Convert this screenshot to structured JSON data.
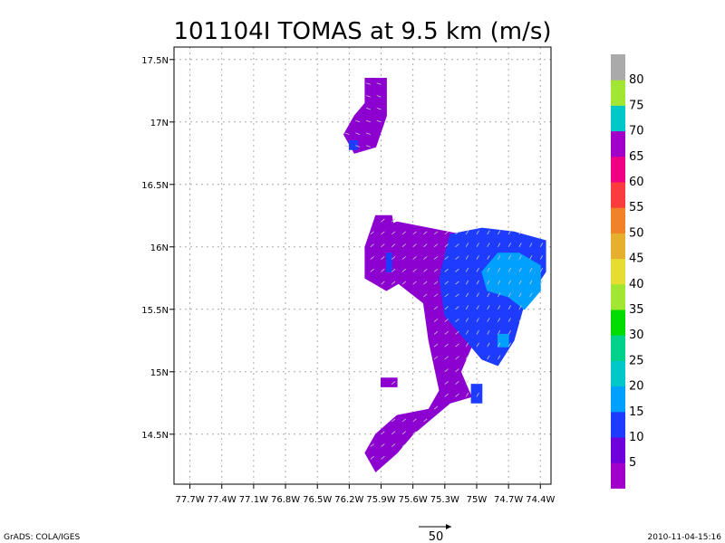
{
  "chart_data": {
    "type": "heatmap",
    "title": "101104I TOMAS at 9.5 km (m/s)",
    "x_axis": {
      "range": [
        -77.85,
        -74.3
      ],
      "ticks": [
        -77.7,
        -77.4,
        -77.1,
        -76.8,
        -76.5,
        -76.2,
        -75.9,
        -75.6,
        -75.3,
        -75.0,
        -74.7,
        -74.4
      ],
      "tick_labels": [
        "77.7W",
        "77.4W",
        "77.1W",
        "76.8W",
        "76.5W",
        "76.2W",
        "75.9W",
        "75.6W",
        "75.3W",
        "75W",
        "74.7W",
        "74.4W"
      ]
    },
    "y_axis": {
      "range": [
        14.1,
        17.6
      ],
      "ticks": [
        14.5,
        15.0,
        15.5,
        16.0,
        16.5,
        17.0,
        17.5
      ],
      "tick_labels": [
        "14.5N",
        "15N",
        "15.5N",
        "16N",
        "16.5N",
        "17N",
        "17.5N"
      ]
    },
    "grid": true,
    "colorbar": {
      "labels": [
        "5",
        "10",
        "15",
        "20",
        "25",
        "30",
        "35",
        "40",
        "45",
        "50",
        "55",
        "60",
        "65",
        "70",
        "75",
        "80"
      ],
      "colors": [
        "#a000c8",
        "#6e00dc",
        "#1e3cff",
        "#00a0ff",
        "#00c8c8",
        "#00d28c",
        "#00dc00",
        "#a0e632",
        "#e6dc32",
        "#e6af2d",
        "#f08228",
        "#fa3c3c",
        "#f00082",
        "#a000c8",
        "#00c8c8",
        "#a0e632",
        "#aaaaaa"
      ]
    },
    "wind_regions": [
      {
        "speed_class": "5-10",
        "color": "#8c00d0",
        "polygon": [
          [
            -75.75,
            16.2
          ],
          [
            -75.45,
            16.15
          ],
          [
            -75.15,
            16.1
          ],
          [
            -75.15,
            15.85
          ],
          [
            -75.05,
            15.6
          ],
          [
            -75.0,
            15.3
          ],
          [
            -75.15,
            15.0
          ],
          [
            -75.05,
            14.8
          ],
          [
            -75.25,
            14.75
          ],
          [
            -75.6,
            14.5
          ],
          [
            -75.75,
            14.35
          ],
          [
            -75.95,
            14.2
          ],
          [
            -76.05,
            14.35
          ],
          [
            -75.95,
            14.5
          ],
          [
            -75.75,
            14.65
          ],
          [
            -75.45,
            14.7
          ],
          [
            -75.35,
            14.85
          ],
          [
            -75.45,
            15.25
          ],
          [
            -75.5,
            15.55
          ],
          [
            -75.8,
            15.75
          ],
          [
            -75.95,
            15.95
          ],
          [
            -76.0,
            16.1
          ]
        ]
      },
      {
        "speed_class": "5-10",
        "color": "#8c00d0",
        "polygon": [
          [
            -75.95,
            16.25
          ],
          [
            -75.8,
            16.25
          ],
          [
            -75.75,
            16.0
          ],
          [
            -75.65,
            15.75
          ],
          [
            -75.85,
            15.65
          ],
          [
            -76.05,
            15.75
          ],
          [
            -76.05,
            16.0
          ]
        ]
      },
      {
        "speed_class": "5-10",
        "color": "#8c00d0",
        "polygon": [
          [
            -76.05,
            17.35
          ],
          [
            -75.85,
            17.35
          ],
          [
            -75.85,
            17.05
          ],
          [
            -75.95,
            16.8
          ],
          [
            -76.15,
            16.75
          ],
          [
            -76.25,
            16.9
          ],
          [
            -76.15,
            17.05
          ],
          [
            -76.05,
            17.15
          ]
        ]
      },
      {
        "speed_class": "5-10",
        "color": "#8c00d0",
        "polygon": [
          [
            -75.9,
            14.95
          ],
          [
            -75.75,
            14.95
          ],
          [
            -75.75,
            14.88
          ],
          [
            -75.9,
            14.88
          ]
        ]
      },
      {
        "speed_class": "10-15",
        "color": "#1e3cff",
        "polygon": [
          [
            -75.25,
            16.1
          ],
          [
            -74.95,
            16.15
          ],
          [
            -74.65,
            16.12
          ],
          [
            -74.35,
            16.05
          ],
          [
            -74.35,
            15.8
          ],
          [
            -74.55,
            15.55
          ],
          [
            -74.65,
            15.25
          ],
          [
            -74.8,
            15.05
          ],
          [
            -74.95,
            15.1
          ],
          [
            -75.15,
            15.3
          ],
          [
            -75.3,
            15.45
          ],
          [
            -75.35,
            15.75
          ]
        ]
      },
      {
        "speed_class": "10-15",
        "color": "#1e3cff",
        "polygon": [
          [
            -75.05,
            14.9
          ],
          [
            -74.95,
            14.9
          ],
          [
            -74.95,
            14.75
          ],
          [
            -75.05,
            14.75
          ]
        ]
      },
      {
        "speed_class": "10-15",
        "color": "#1e3cff",
        "polygon": [
          [
            -75.85,
            15.95
          ],
          [
            -75.8,
            15.95
          ],
          [
            -75.8,
            15.8
          ],
          [
            -75.85,
            15.8
          ]
        ]
      },
      {
        "speed_class": "10-15",
        "color": "#1e3cff",
        "polygon": [
          [
            -76.2,
            16.85
          ],
          [
            -76.12,
            16.85
          ],
          [
            -76.12,
            16.78
          ],
          [
            -76.2,
            16.78
          ]
        ]
      },
      {
        "speed_class": "15-20",
        "color": "#00a0ff",
        "polygon": [
          [
            -74.95,
            15.8
          ],
          [
            -74.8,
            15.95
          ],
          [
            -74.6,
            15.95
          ],
          [
            -74.4,
            15.85
          ],
          [
            -74.4,
            15.65
          ],
          [
            -74.55,
            15.5
          ],
          [
            -74.7,
            15.6
          ],
          [
            -74.9,
            15.65
          ]
        ]
      },
      {
        "speed_class": "15-20",
        "color": "#00a0ff",
        "polygon": [
          [
            -74.8,
            15.3
          ],
          [
            -74.7,
            15.3
          ],
          [
            -74.7,
            15.2
          ],
          [
            -74.8,
            15.2
          ]
        ]
      }
    ],
    "reference_vector": {
      "value": "50"
    },
    "footer_left": "GrADS: COLA/IGES",
    "footer_right": "2010-11-04-15:16"
  }
}
